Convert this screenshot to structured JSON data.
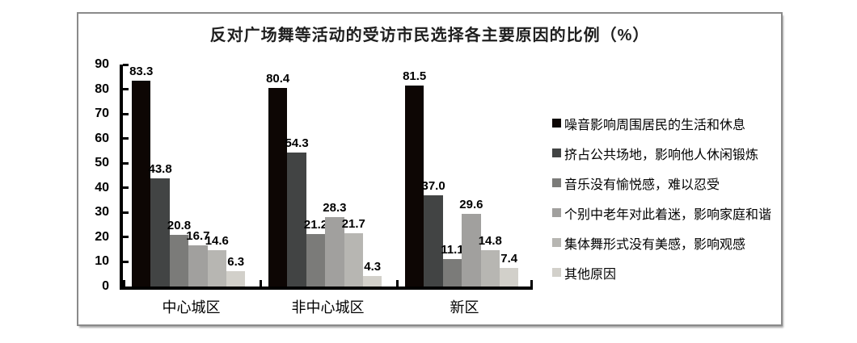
{
  "chart_data": {
    "type": "bar",
    "title": "反对广场舞等活动的受访市民选择各主要原因的比例（%）",
    "categories": [
      "中心城区",
      "非中心城区",
      "新区"
    ],
    "series": [
      {
        "name": "噪音影响周围居民的生活和休息",
        "color": "#0d0604",
        "values": [
          83.3,
          80.4,
          81.5
        ]
      },
      {
        "name": "挤占公共场地，影响他人休闲锻炼",
        "color": "#424444",
        "values": [
          43.8,
          54.3,
          37.0
        ]
      },
      {
        "name": "音乐没有愉悦感，难以忍受",
        "color": "#7b7b79",
        "values": [
          20.8,
          21.2,
          11.1
        ]
      },
      {
        "name": "个别中老年对此着迷，影响家庭和谐",
        "color": "#a1a09e",
        "values": [
          16.7,
          28.3,
          29.6
        ]
      },
      {
        "name": "集体舞形式没有美感，影响观感",
        "color": "#b7b6b2",
        "values": [
          14.6,
          21.7,
          14.8
        ]
      },
      {
        "name": "其他原因",
        "color": "#d2d0ca",
        "values": [
          6.3,
          4.3,
          7.4
        ]
      }
    ],
    "ylabel": "",
    "xlabel": "",
    "ylim": [
      0,
      90
    ],
    "yticks": [
      0,
      10,
      20,
      30,
      40,
      50,
      60,
      70,
      80,
      90
    ],
    "grid": false,
    "legend_position": "right",
    "value_labels": true,
    "frame_border_color": "#8a8a8a"
  }
}
